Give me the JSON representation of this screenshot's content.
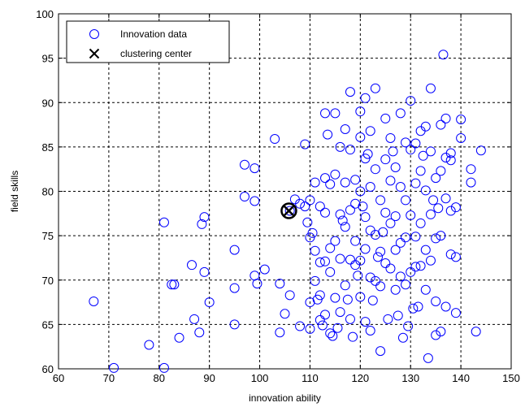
{
  "chart_data": {
    "type": "scatter",
    "xlabel": "innovation ability",
    "ylabel": "field skills",
    "xlim": [
      60,
      150
    ],
    "ylim": [
      60,
      100
    ],
    "x_ticks": [
      60,
      70,
      80,
      90,
      100,
      110,
      120,
      130,
      140,
      150
    ],
    "y_ticks": [
      60,
      65,
      70,
      75,
      80,
      85,
      90,
      95,
      100
    ],
    "grid": true,
    "grid_style": "dashed",
    "legend_position": "top-left",
    "colors": {
      "data": "#0000ff",
      "center": "#000000",
      "grid": "#000000"
    },
    "series": [
      {
        "name": "Innovation data",
        "marker": "circle",
        "x": [
          67,
          71,
          78,
          81,
          81,
          82.5,
          83,
          84,
          86.5,
          87,
          88,
          88.5,
          89,
          89,
          90,
          95,
          95,
          95,
          97,
          97,
          99,
          99,
          99,
          99.5,
          101,
          103,
          104,
          104,
          105,
          106,
          106,
          107,
          108,
          108,
          109,
          109,
          109.5,
          110,
          110,
          110,
          110,
          110.5,
          111,
          111,
          111,
          111.5,
          112,
          112,
          112,
          112,
          112.5,
          113,
          113,
          113,
          113,
          113,
          113.5,
          114,
          114,
          114,
          114,
          114.5,
          115,
          115,
          115,
          115,
          115.5,
          116,
          116,
          116,
          116,
          116.5,
          117,
          117,
          117,
          117,
          117.5,
          118,
          118,
          118,
          118,
          118,
          118.5,
          119,
          119,
          119,
          119,
          119.5,
          120,
          120,
          120,
          120,
          120,
          120.5,
          121,
          121,
          121,
          121,
          121,
          121.5,
          122,
          122,
          122,
          122,
          122,
          122.5,
          123,
          123,
          123,
          123,
          123.5,
          124,
          124,
          124,
          124,
          124.5,
          125,
          125,
          125,
          125,
          125.5,
          126,
          126,
          126,
          126,
          126.5,
          127,
          127,
          127,
          127,
          127.5,
          128,
          128,
          128,
          128,
          128.5,
          129,
          129,
          129,
          129,
          129.5,
          130,
          130,
          130,
          130,
          130.5,
          131,
          131,
          131,
          131,
          131.5,
          132,
          132,
          132,
          132,
          132.5,
          133,
          133,
          133,
          133,
          133.5,
          134,
          134,
          134,
          134,
          134.5,
          135,
          135,
          135,
          135,
          135.5,
          136,
          136,
          136,
          136,
          136.5,
          137,
          137,
          137,
          137,
          138,
          138,
          138,
          138,
          139,
          139,
          139,
          140,
          140,
          142,
          142,
          143,
          144
        ],
        "y": [
          67.6,
          60.1,
          62.7,
          76.5,
          60.1,
          69.5,
          69.5,
          63.5,
          71.7,
          65.6,
          64.1,
          76.3,
          77.1,
          70.9,
          67.5,
          73.4,
          69.1,
          65.0,
          83.0,
          79.4,
          82.6,
          78.9,
          70.5,
          69.6,
          71.2,
          85.9,
          69.6,
          64.1,
          66.2,
          68.3,
          77.8,
          79.1,
          78.6,
          64.8,
          85.3,
          78.3,
          76.5,
          79.0,
          74.8,
          67.5,
          64.5,
          75.3,
          81.0,
          73.3,
          69.9,
          67.8,
          78.3,
          72.0,
          68.3,
          65.5,
          64.9,
          88.8,
          81.5,
          77.6,
          72.1,
          66.1,
          86.4,
          80.8,
          73.6,
          70.9,
          64.0,
          63.7,
          88.8,
          81.9,
          74.4,
          68.0,
          64.6,
          85.0,
          77.4,
          72.4,
          66.4,
          76.7,
          87.0,
          81.0,
          76.0,
          69.4,
          67.8,
          91.2,
          84.7,
          77.9,
          72.3,
          65.6,
          63.6,
          81.3,
          78.6,
          74.4,
          71.7,
          70.5,
          89.0,
          86.1,
          80.0,
          72.2,
          68.1,
          78.3,
          90.5,
          83.7,
          77.1,
          73.5,
          65.3,
          84.2,
          86.8,
          80.5,
          75.6,
          70.3,
          64.3,
          67.7,
          91.6,
          82.5,
          75.1,
          69.9,
          72.6,
          79.0,
          73.2,
          69.3,
          62.0,
          75.4,
          88.2,
          83.6,
          77.6,
          71.9,
          65.6,
          86.0,
          81.2,
          76.4,
          71.3,
          84.5,
          82.7,
          77.2,
          73.4,
          68.9,
          66.0,
          88.8,
          80.5,
          74.2,
          70.4,
          63.5,
          85.5,
          79.0,
          74.8,
          69.5,
          64.8,
          90.2,
          84.7,
          77.3,
          70.9,
          66.8,
          85.4,
          80.9,
          74.9,
          71.5,
          67.0,
          86.8,
          82.3,
          76.4,
          71.6,
          84.0,
          87.3,
          80.1,
          73.4,
          68.9,
          61.2,
          91.6,
          84.5,
          77.4,
          72.2,
          79.0,
          81.5,
          74.7,
          67.6,
          63.8,
          78.1,
          87.5,
          82.3,
          75.0,
          64.2,
          95.4,
          88.2,
          83.8,
          79.2,
          67.0,
          83.5,
          77.8,
          72.9,
          84.3,
          78.2,
          66.3,
          72.6,
          86.0,
          88.1,
          82.5,
          81.0,
          64.2,
          84.6
        ]
      },
      {
        "name": "clustering center",
        "marker": "x",
        "x": [
          105.8
        ],
        "y": [
          77.8
        ]
      }
    ],
    "center_overlay": {
      "x": 105.8,
      "y": 77.8,
      "marker": "circle-cross"
    }
  }
}
